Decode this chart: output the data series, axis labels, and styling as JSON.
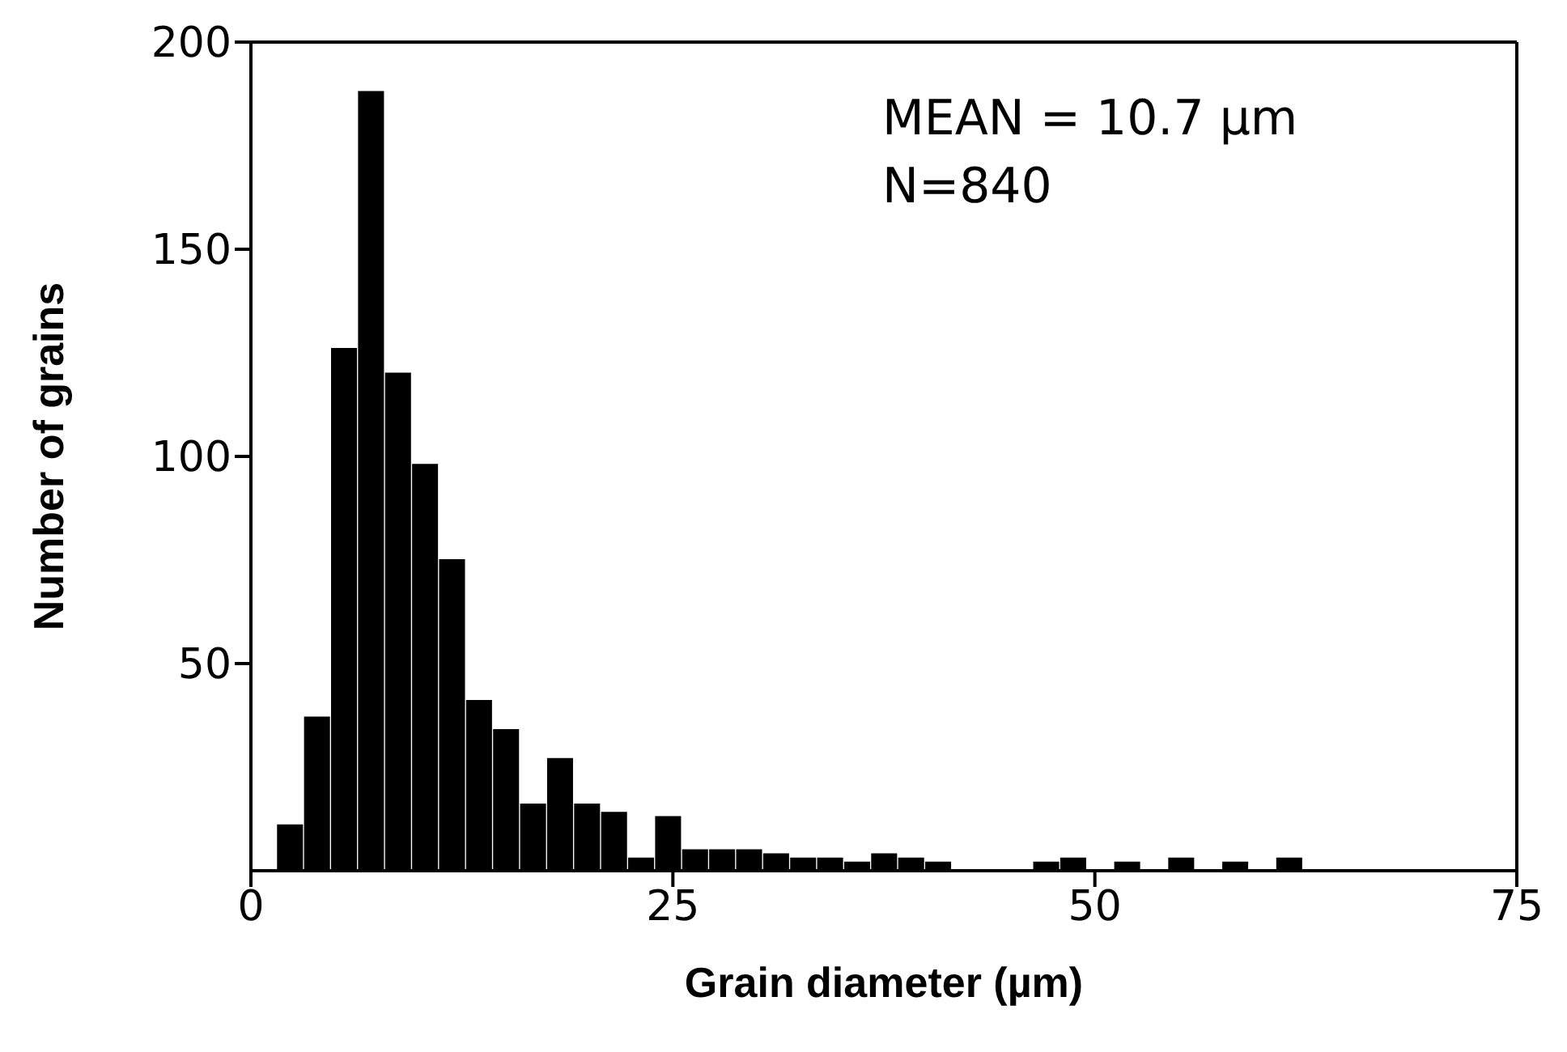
{
  "chart_data": {
    "type": "histogram",
    "xlabel": "Grain diameter (µm)",
    "ylabel": "Number of grains",
    "annotations": [
      "MEAN = 10.7 µm",
      "N=840"
    ],
    "bins": [
      1.5,
      3.1,
      4.7,
      6.3,
      7.9,
      9.5,
      11.1,
      12.7,
      14.3,
      15.9,
      17.5,
      19.1,
      20.7,
      22.3,
      23.9,
      25.5,
      27.1,
      28.7,
      30.3,
      31.9,
      33.5,
      35.1,
      36.7,
      38.3,
      39.9,
      41.5,
      43.1,
      44.7,
      46.3,
      47.9,
      49.5,
      51.1,
      52.7,
      54.3,
      55.9,
      57.5,
      59.1,
      60.7,
      62.3
    ],
    "values": [
      11,
      37,
      126,
      188,
      120,
      98,
      75,
      41,
      34,
      16,
      27,
      16,
      14,
      3,
      13,
      5,
      5,
      5,
      4,
      3,
      3,
      2,
      4,
      3,
      2,
      0,
      0,
      0,
      2,
      3,
      0,
      2,
      0,
      3,
      0,
      2,
      0,
      3
    ],
    "color": "#000000",
    "xlim": [
      0,
      75
    ],
    "xticks": [
      0,
      25,
      50,
      75
    ],
    "ylim": [
      0,
      200
    ],
    "yticks": [
      50,
      100,
      150,
      200
    ],
    "grid": false,
    "legend": false
  }
}
